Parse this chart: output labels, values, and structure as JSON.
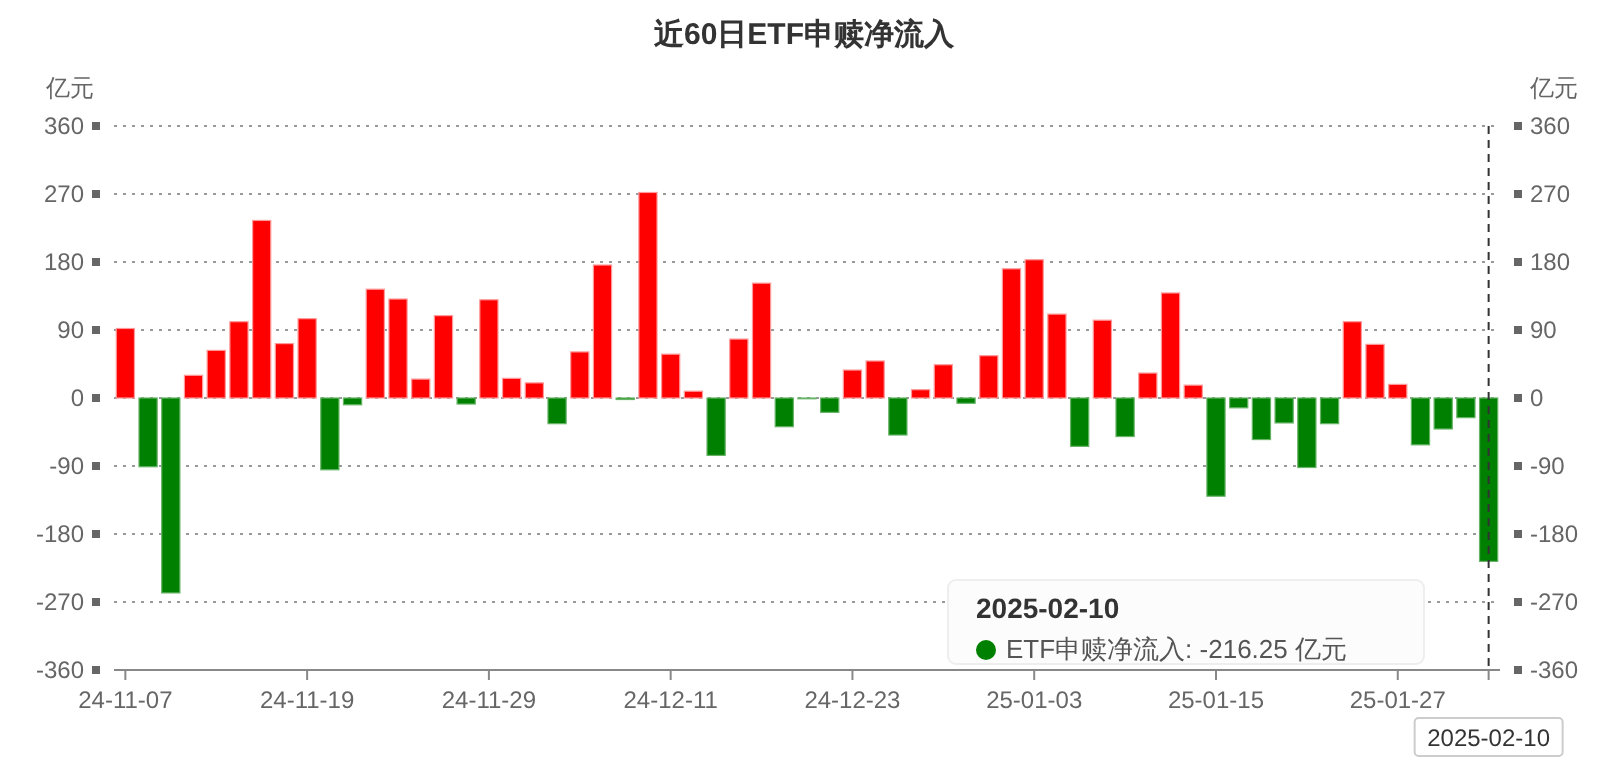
{
  "chart_data": {
    "type": "bar",
    "title": "近60日ETF申赎净流入",
    "ylabel": "亿元",
    "y2label": "亿元",
    "categories": [
      "24-11-07",
      null,
      null,
      null,
      null,
      null,
      null,
      null,
      "24-11-19",
      null,
      null,
      null,
      null,
      null,
      null,
      null,
      "24-11-29",
      null,
      null,
      null,
      null,
      null,
      null,
      null,
      "24-12-11",
      null,
      null,
      null,
      null,
      null,
      null,
      null,
      "24-12-23",
      null,
      null,
      null,
      null,
      null,
      null,
      null,
      "25-01-03",
      null,
      null,
      null,
      null,
      null,
      null,
      null,
      "25-01-15",
      null,
      null,
      null,
      null,
      null,
      null,
      null,
      "25-01-27",
      null,
      null,
      null,
      "2025-02-10"
    ],
    "values": [
      92,
      -91,
      -258,
      30,
      63,
      101,
      235,
      72,
      105,
      -95,
      -9,
      144,
      131,
      25,
      109,
      -8,
      130,
      26,
      20,
      -34,
      61,
      176,
      -2,
      272,
      58,
      9,
      -76,
      78,
      152,
      -38,
      -1,
      -19,
      37,
      49,
      -49,
      11,
      44,
      -7,
      56,
      171,
      183,
      111,
      -64,
      103,
      -51,
      33,
      139,
      17,
      -130,
      -13,
      -55,
      -33,
      -92,
      -34,
      101,
      71,
      18,
      -62,
      -41,
      -26,
      -216.25
    ],
    "colors": [
      "#ff0000",
      "#008000",
      "#008000",
      "#ff0000",
      "#ff0000",
      "#ff0000",
      "#ff0000",
      "#ff0000",
      "#ff0000",
      "#008000",
      "#008000",
      "#ff0000",
      "#ff0000",
      "#ff0000",
      "#ff0000",
      "#008000",
      "#ff0000",
      "#ff0000",
      "#ff0000",
      "#008000",
      "#ff0000",
      "#ff0000",
      "#008000",
      "#ff0000",
      "#ff0000",
      "#ff0000",
      "#008000",
      "#ff0000",
      "#ff0000",
      "#008000",
      "#008000",
      "#008000",
      "#ff0000",
      "#ff0000",
      "#008000",
      "#ff0000",
      "#ff0000",
      "#008000",
      "#ff0000",
      "#ff0000",
      "#ff0000",
      "#ff0000",
      "#008000",
      "#ff0000",
      "#008000",
      "#ff0000",
      "#ff0000",
      "#ff0000",
      "#008000",
      "#008000",
      "#008000",
      "#008000",
      "#008000",
      "#008000",
      "#ff0000",
      "#ff0000",
      "#ff0000",
      "#008000",
      "#008000",
      "#008000",
      "#008000"
    ],
    "ylim": [
      -360,
      360
    ],
    "yticks": [
      -360,
      -270,
      -180,
      -90,
      0,
      90,
      180,
      270,
      360
    ],
    "y2lim": [
      -360,
      360
    ],
    "y2ticks": [
      -360,
      -270,
      -180,
      -90,
      0,
      90,
      180,
      270,
      360
    ],
    "grid": "y",
    "ref_lines": [
      {
        "axis": "x",
        "value": "2025-02-10",
        "line_style": "dashed",
        "color": "#333333"
      }
    ],
    "annotations": [
      {
        "text": "2025-02-10"
      },
      "ETF申赎净流入: -216.25 亿元"
    ]
  }
}
